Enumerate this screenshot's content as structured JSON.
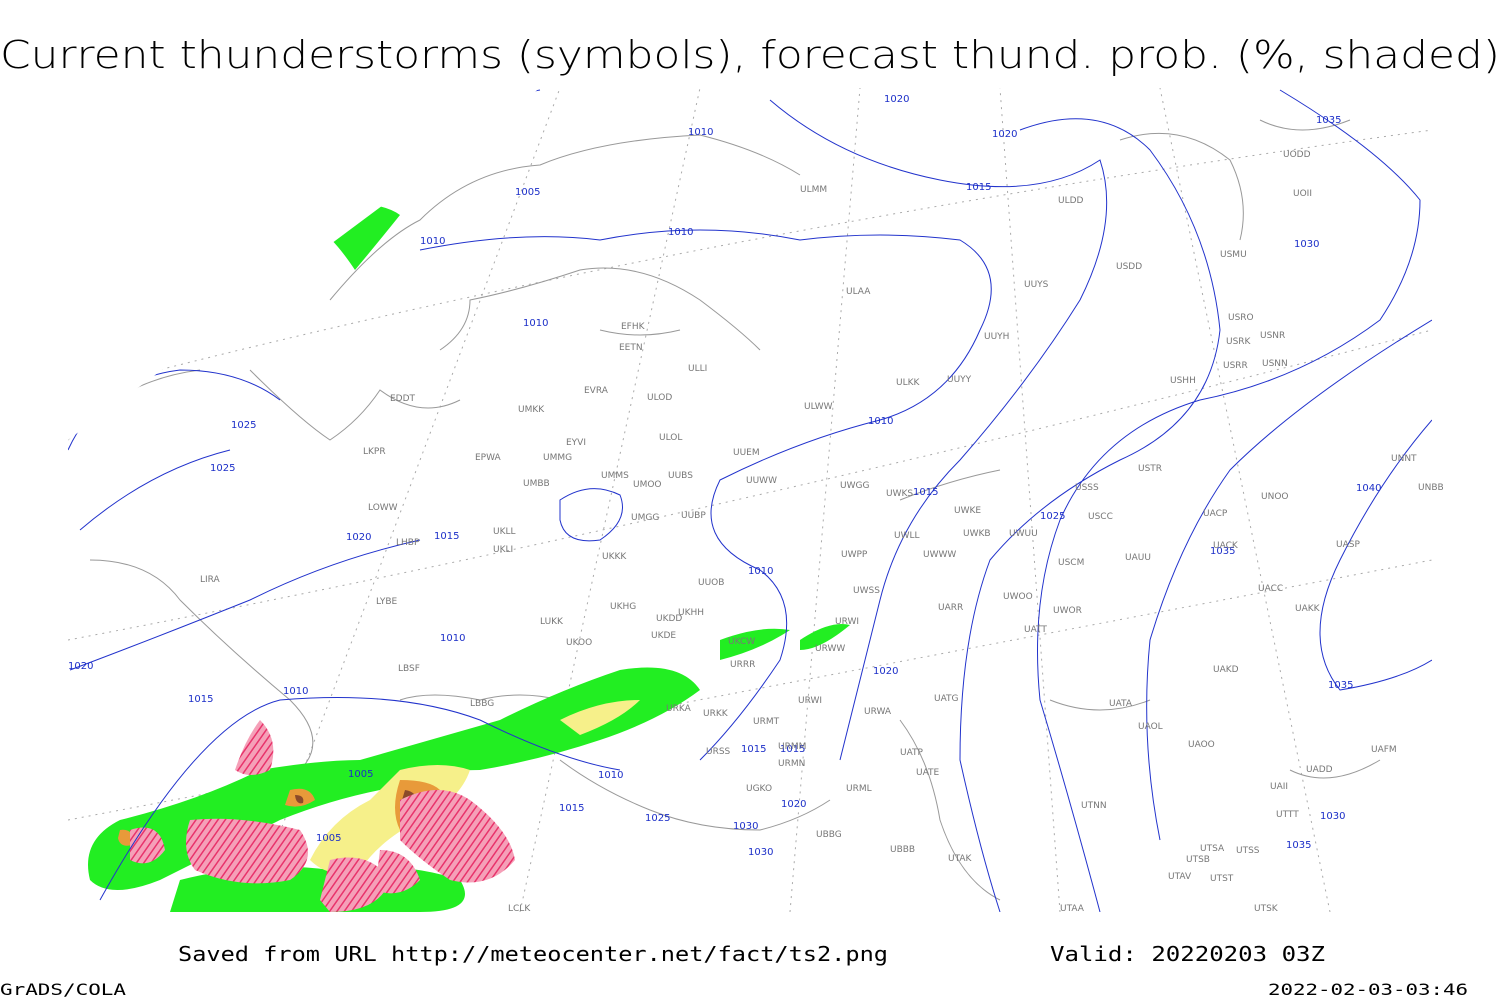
{
  "header": {
    "title": "Current thunderstorms (symbols), forecast thund. prob. (%, shaded)"
  },
  "footer": {
    "source": "Saved from URL http://meteocenter.net/fact/ts2.png",
    "valid": "Valid: 20220203 03Z",
    "software": "GrADS/COLA",
    "timestamp": "2022-02-03-03:46"
  },
  "isobar_labels": [
    "1020",
    "1010",
    "1020",
    "1015",
    "1005",
    "1010",
    "1010",
    "1030",
    "1035",
    "1010",
    "1025",
    "1025",
    "1010",
    "1015",
    "1025",
    "1035",
    "1040",
    "1020",
    "1015",
    "1010",
    "1010",
    "1020",
    "1020",
    "1035",
    "1010",
    "1015",
    "1015",
    "1015",
    "1005",
    "1010",
    "1015",
    "1025",
    "1020",
    "1030",
    "1005",
    "1030",
    "1030",
    "1035"
  ],
  "stations": [
    "EDDT",
    "LKPR",
    "LOWW",
    "LHBP",
    "LIRA",
    "LYBE",
    "LBSF",
    "LBBG",
    "EPWA",
    "UMKK",
    "UMMG",
    "UMBB",
    "UKLL",
    "UKLI",
    "EYVI",
    "EVRA",
    "EETN",
    "EFHK",
    "ULLI",
    "ULOD",
    "ULOL",
    "UMMS",
    "UUBS",
    "UMOO",
    "UMGG",
    "UUBP",
    "UKKK",
    "UUOB",
    "UKHH",
    "UKHG",
    "UKDD",
    "UKDE",
    "UKOO",
    "LUKK",
    "UKCW",
    "URRR",
    "URKA",
    "URKK",
    "URMT",
    "URSS",
    "URMM",
    "URMN",
    "UGKO",
    "UBBG",
    "URML",
    "ULMM",
    "ULDD",
    "ULAA",
    "UUYS",
    "USDD",
    "UUYH",
    "UUYY",
    "ULKK",
    "ULWW",
    "UUEM",
    "UUWW",
    "UWGG",
    "UWKS",
    "UWKE",
    "UWKB",
    "UWWW",
    "UWLL",
    "UWUU",
    "UWPP",
    "UWSS",
    "UWOO",
    "UWOR",
    "UATT",
    "UARR",
    "URWI",
    "URWW",
    "URWI",
    "URWA",
    "UATG",
    "UATP",
    "UATE",
    "UBBB",
    "UTAK",
    "UTAA",
    "UTNN",
    "UATA",
    "UAOL",
    "UAOO",
    "UAKD",
    "UACC",
    "UAKK",
    "UASP",
    "UACK",
    "UACP",
    "UNOO",
    "UNNT",
    "UNBB",
    "USCC",
    "USSS",
    "USTR",
    "USCM",
    "UAUU",
    "USHH",
    "USRR",
    "USNN",
    "USRK",
    "USNR",
    "USRO",
    "USMU",
    "UOII",
    "UODD",
    "UAFM",
    "UADD",
    "UAII",
    "UTTT",
    "UTSA",
    "UTSS",
    "UTSB",
    "UTAV",
    "UTST",
    "UTSK",
    "LCLK"
  ]
}
